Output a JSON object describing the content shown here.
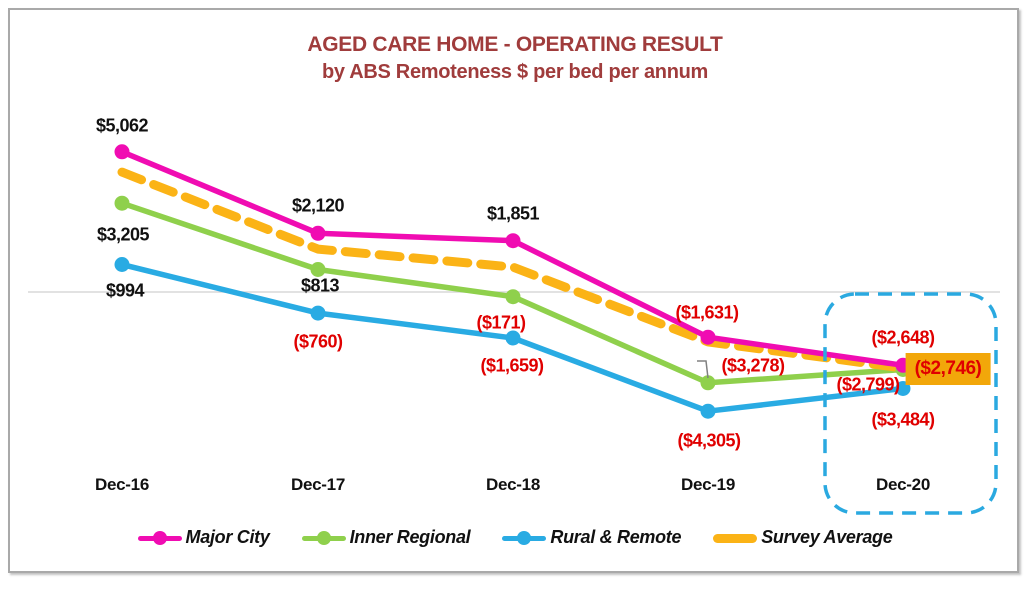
{
  "colors": {
    "title": "#A03C3C",
    "positive_label": "#111111",
    "negative_label": "#E00000",
    "zero_line": "#D8D8D8",
    "highlight_fill": "#F2A70A",
    "dashed_box": "#2AA9E0",
    "frame_border": "#A9A9A9",
    "leader_line": "#808080",
    "axis_label": "#111111",
    "legend_label": "#111111"
  },
  "chart_data": {
    "type": "line",
    "title": "AGED CARE HOME - OPERATING RESULT",
    "subtitle": "by ABS Remoteness $ per bed per annum",
    "categories": [
      "Dec-16",
      "Dec-17",
      "Dec-18",
      "Dec-19",
      "Dec-20"
    ],
    "series": [
      {
        "name": "Major City",
        "color": "#F00CB2",
        "line_style": "solid",
        "marker": true,
        "values": [
          5062,
          2120,
          1851,
          -1631,
          -2648
        ],
        "labels": [
          "$5,062",
          "$2,120",
          "$1,851",
          "($1,631)",
          "($2,648)"
        ]
      },
      {
        "name": "Inner Regional",
        "color": "#8FD04C",
        "line_style": "solid",
        "marker": true,
        "values": [
          3205,
          813,
          -171,
          -3278,
          -2799
        ],
        "labels": [
          "$3,205",
          "$813",
          "($171)",
          "($3,278)",
          "($2,799)"
        ]
      },
      {
        "name": "Rural & Remote",
        "color": "#29ABE3",
        "line_style": "solid",
        "marker": true,
        "values": [
          994,
          -760,
          -1659,
          -4305,
          -3484
        ],
        "labels": [
          "$994",
          "($760)",
          "($1,659)",
          "($4,305)",
          "($3,484)"
        ]
      },
      {
        "name": "Survey Average",
        "color": "#FBB316",
        "line_style": "dashed",
        "marker": false,
        "values": [
          4330,
          1550,
          900,
          -1800,
          -2746
        ],
        "values_note": "Only the Dec-20 value (-2746) is labeled on the chart; earlier values are estimated from line position",
        "labels": [
          null,
          null,
          null,
          null,
          "($2,746)"
        ]
      }
    ],
    "y_axis": {
      "visible": false,
      "zero_gridline": true
    },
    "legend_position": "bottom",
    "annotations": [
      {
        "type": "dashed-rounded-box",
        "around": "Dec-20"
      },
      {
        "type": "highlighted-value",
        "series": "Survey Average",
        "category": "Dec-20"
      },
      {
        "type": "leader-line",
        "series": "Inner Regional",
        "category": "Dec-19"
      }
    ]
  }
}
